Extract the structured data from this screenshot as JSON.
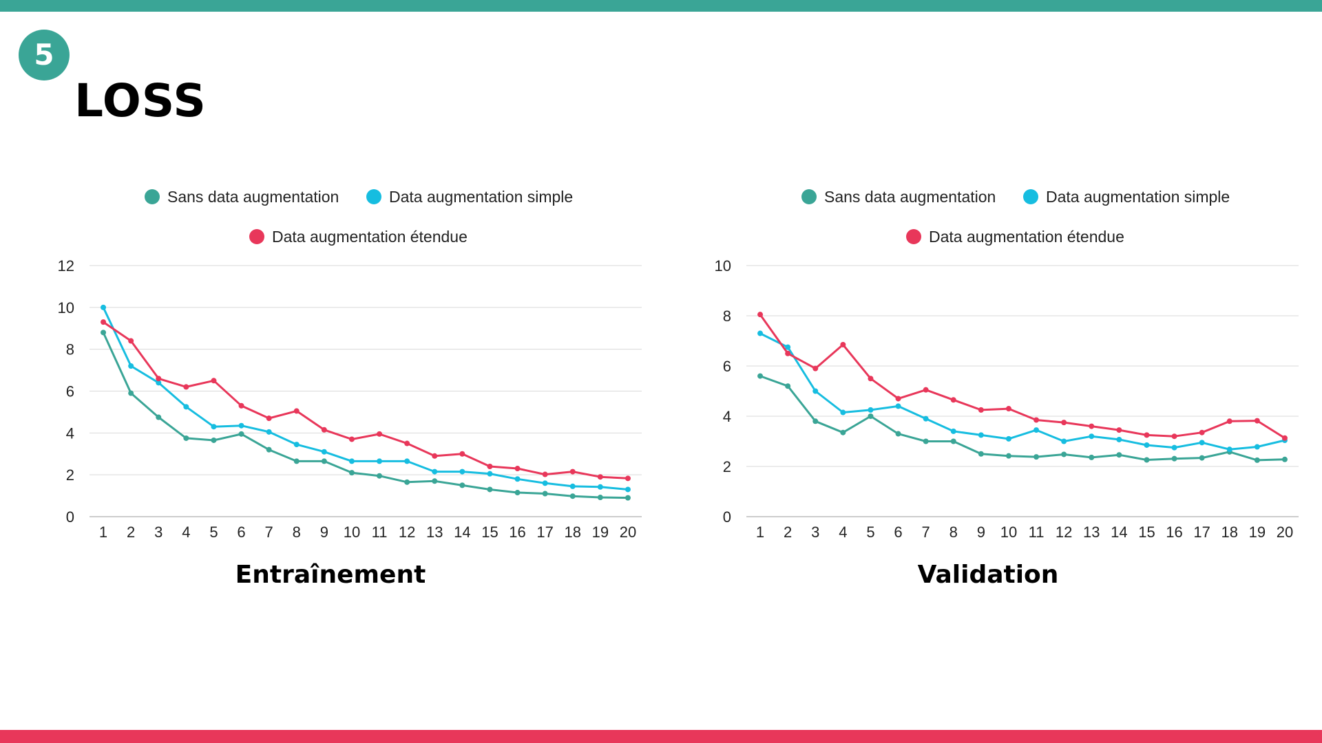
{
  "slide": {
    "number": "5",
    "title": "LOSS",
    "colors": {
      "accent_top": "#3aa596",
      "accent_bottom": "#e8375a"
    }
  },
  "chart_data": [
    {
      "type": "line",
      "title": "Entraînement",
      "xlabel": "",
      "ylabel": "",
      "categories": [
        "1",
        "2",
        "3",
        "4",
        "5",
        "6",
        "7",
        "8",
        "9",
        "10",
        "11",
        "12",
        "13",
        "14",
        "15",
        "16",
        "17",
        "18",
        "19",
        "20"
      ],
      "ylim": [
        0,
        12
      ],
      "yticks": [
        "0",
        "2",
        "4",
        "6",
        "8",
        "10",
        "12"
      ],
      "grid": true,
      "legend": "top",
      "series": [
        {
          "name": "Sans data augmentation",
          "color": "#3aa596",
          "values": [
            8.8,
            5.9,
            4.75,
            3.75,
            3.65,
            3.95,
            3.2,
            2.65,
            2.65,
            2.1,
            1.95,
            1.65,
            1.7,
            1.5,
            1.3,
            1.15,
            1.1,
            0.98,
            0.92,
            0.9
          ]
        },
        {
          "name": "Data augmentation simple",
          "color": "#16bde0",
          "values": [
            10.0,
            7.2,
            6.4,
            5.25,
            4.3,
            4.35,
            4.05,
            3.45,
            3.1,
            2.65,
            2.65,
            2.65,
            2.15,
            2.15,
            2.05,
            1.8,
            1.6,
            1.45,
            1.42,
            1.3
          ]
        },
        {
          "name": "Data augmentation étendue",
          "color": "#e8375a",
          "values": [
            9.3,
            8.4,
            6.6,
            6.2,
            6.5,
            5.3,
            4.7,
            5.05,
            4.15,
            3.7,
            3.95,
            3.5,
            2.9,
            3.0,
            2.4,
            2.3,
            2.02,
            2.15,
            1.9,
            1.83
          ]
        }
      ]
    },
    {
      "type": "line",
      "title": "Validation",
      "xlabel": "",
      "ylabel": "",
      "categories": [
        "1",
        "2",
        "3",
        "4",
        "5",
        "6",
        "7",
        "8",
        "9",
        "10",
        "11",
        "12",
        "13",
        "14",
        "15",
        "16",
        "17",
        "18",
        "19",
        "20"
      ],
      "ylim": [
        0,
        10
      ],
      "yticks": [
        "0",
        "2",
        "4",
        "6",
        "8",
        "10"
      ],
      "grid": true,
      "legend": "top",
      "series": [
        {
          "name": "Sans data augmentation",
          "color": "#3aa596",
          "values": [
            5.6,
            5.2,
            3.8,
            3.35,
            4.0,
            3.3,
            3.0,
            3.0,
            2.5,
            2.42,
            2.38,
            2.48,
            2.36,
            2.46,
            2.26,
            2.31,
            2.34,
            2.58,
            2.25,
            2.28
          ]
        },
        {
          "name": "Data augmentation simple",
          "color": "#16bde0",
          "values": [
            7.3,
            6.75,
            5.0,
            4.15,
            4.25,
            4.4,
            3.9,
            3.4,
            3.25,
            3.1,
            3.45,
            3.0,
            3.2,
            3.07,
            2.85,
            2.75,
            2.95,
            2.68,
            2.78,
            3.04
          ]
        },
        {
          "name": "Data augmentation étendue",
          "color": "#e8375a",
          "values": [
            8.05,
            6.5,
            5.9,
            6.85,
            5.5,
            4.7,
            5.05,
            4.65,
            4.25,
            4.3,
            3.85,
            3.75,
            3.6,
            3.45,
            3.25,
            3.2,
            3.35,
            3.8,
            3.82,
            3.13
          ]
        }
      ]
    }
  ]
}
